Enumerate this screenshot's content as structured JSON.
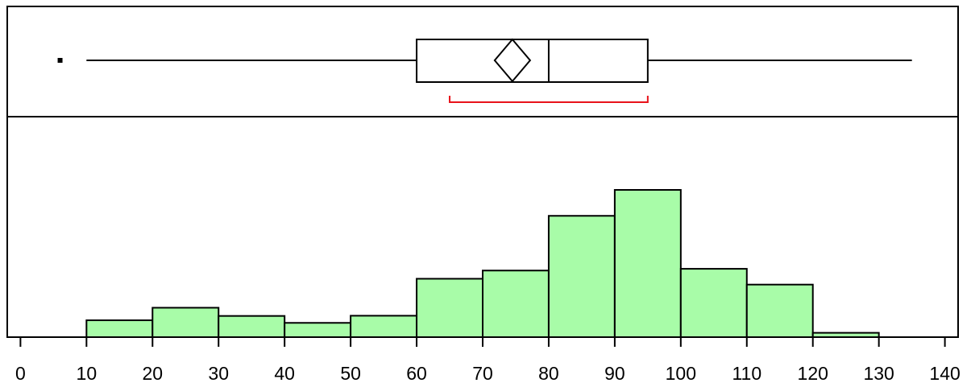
{
  "chart_data": {
    "type": "histogram",
    "bin_width": 10,
    "bins": [
      {
        "start": 10,
        "end": 20,
        "height": 0.078
      },
      {
        "start": 20,
        "end": 30,
        "height": 0.136
      },
      {
        "start": 30,
        "end": 40,
        "height": 0.098
      },
      {
        "start": 40,
        "end": 50,
        "height": 0.066
      },
      {
        "start": 50,
        "end": 60,
        "height": 0.099
      },
      {
        "start": 60,
        "end": 70,
        "height": 0.27
      },
      {
        "start": 70,
        "end": 80,
        "height": 0.308
      },
      {
        "start": 80,
        "end": 90,
        "height": 0.561
      },
      {
        "start": 90,
        "end": 100,
        "height": 0.681
      },
      {
        "start": 100,
        "end": 110,
        "height": 0.316
      },
      {
        "start": 110,
        "end": 120,
        "height": 0.243
      },
      {
        "start": 120,
        "end": 130,
        "height": 0.02
      }
    ],
    "boxplot": {
      "whisker_low": 10,
      "q1": 60,
      "median": 80,
      "q3": 95,
      "whisker_high": 135,
      "mean": 74.5,
      "outliers": [
        6
      ],
      "shortest_half": [
        65,
        95
      ]
    },
    "xlim": [
      -2,
      142
    ],
    "x_ticks": [
      0,
      10,
      20,
      30,
      40,
      50,
      60,
      70,
      80,
      90,
      100,
      110,
      120,
      130,
      140
    ],
    "x_tick_labels": [
      "0",
      "10",
      "20",
      "30",
      "40",
      "50",
      "60",
      "70",
      "80",
      "90",
      "100",
      "110",
      "120",
      "130",
      "140"
    ],
    "colors": {
      "bar_fill": "#a8fca8",
      "outline": "#000000",
      "shortest_half": "#e8121a"
    }
  }
}
